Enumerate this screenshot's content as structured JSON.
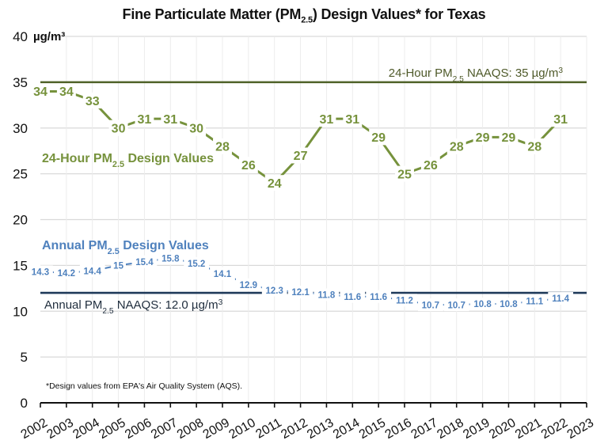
{
  "chart_data": {
    "type": "line",
    "title_parts": [
      "Fine Particulate Matter (PM",
      "2.5",
      ") Design Values* for Texas"
    ],
    "ylabel_unit": "µg/m³",
    "xlabel": "",
    "ylim": [
      0,
      40
    ],
    "yticks": [
      0,
      5,
      10,
      15,
      20,
      25,
      30,
      35,
      40
    ],
    "xticks": [
      "2002",
      "2003",
      "2004",
      "2005",
      "2006",
      "2007",
      "2008",
      "2009",
      "2010",
      "2011",
      "2012",
      "2013",
      "2014",
      "2015",
      "2016",
      "2017",
      "2018",
      "2019",
      "2020",
      "2021",
      "2022",
      "2023"
    ],
    "grid": true,
    "x": [
      "2002",
      "2003",
      "2004",
      "2005",
      "2006",
      "2007",
      "2008",
      "2009",
      "2010",
      "2011",
      "2012",
      "2013",
      "2014",
      "2015",
      "2016",
      "2017",
      "2018",
      "2019",
      "2020",
      "2021",
      "2022"
    ],
    "series": [
      {
        "name": "24-Hour PM2.5 Design Values",
        "label_parts": [
          "24-Hour PM",
          "2.5",
          " Design Values"
        ],
        "color": "#76923c",
        "values": [
          34,
          34,
          33,
          30,
          31,
          31,
          30,
          28,
          26,
          24,
          27,
          31,
          31,
          29,
          25,
          26,
          28,
          29,
          29,
          28,
          31
        ]
      },
      {
        "name": "Annual PM2.5 Design Values",
        "label_parts": [
          "Annual PM",
          "2.5",
          " Design Values"
        ],
        "color": "#4f81bd",
        "values": [
          14.3,
          14.2,
          14.4,
          15,
          15.4,
          15.8,
          15.2,
          14.1,
          12.9,
          12.3,
          12.1,
          11.8,
          11.6,
          11.6,
          11.2,
          10.7,
          10.7,
          10.8,
          10.8,
          11.1,
          11.4
        ]
      }
    ],
    "reference_lines": [
      {
        "name": "24-Hour PM2.5 NAAQS",
        "value": 35,
        "label_parts": [
          "24-Hour PM",
          "2.5",
          " NAAQS: 35 µg/m",
          "3"
        ],
        "color": "#4f6228"
      },
      {
        "name": "Annual PM2.5 NAAQS",
        "value": 12.0,
        "label_parts": [
          "Annual PM",
          "2.5",
          " NAAQS: 12.0 µg/m",
          "3"
        ],
        "color": "#1f3a5a"
      }
    ],
    "footnote": "*Design values from EPA's Air Quality System (AQS)."
  }
}
